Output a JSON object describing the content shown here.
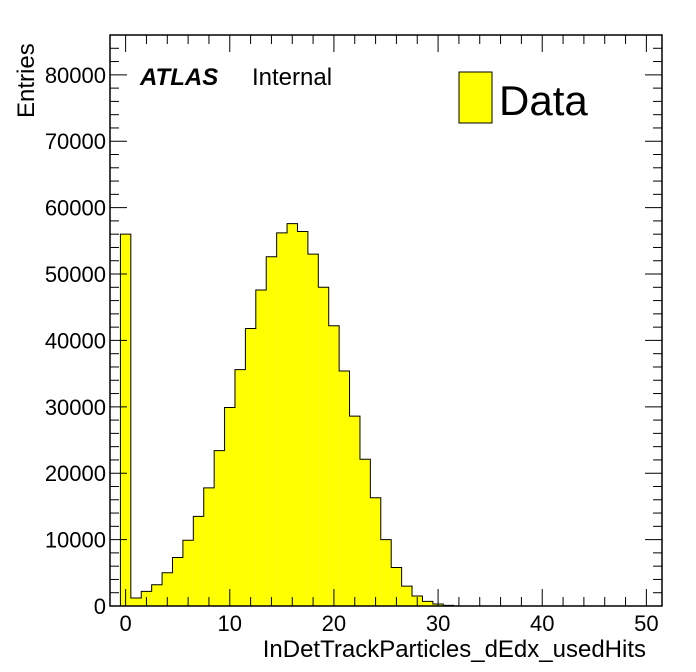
{
  "chart_data": {
    "type": "bar",
    "xlabel": "InDetTrackParticles_dEdx_usedHits",
    "ylabel": "Entries",
    "xlim": [
      -1.5,
      51.5
    ],
    "ylim": [
      0,
      86000
    ],
    "bin_width": 1,
    "x_bin_starts": [
      -0.5,
      0.5,
      1.5,
      2.5,
      3.5,
      4.5,
      5.5,
      6.5,
      7.5,
      8.5,
      9.5,
      10.5,
      11.5,
      12.5,
      13.5,
      14.5,
      15.5,
      16.5,
      17.5,
      18.5,
      19.5,
      20.5,
      21.5,
      22.5,
      23.5,
      24.5,
      25.5,
      26.5,
      27.5,
      28.5,
      29.5,
      30.5,
      31.5,
      32.5,
      33.5,
      34.5,
      35.5,
      36.5,
      37.5,
      38.5,
      39.5,
      40.5,
      41.5,
      42.5,
      43.5,
      44.5,
      45.5,
      46.5,
      47.5,
      48.5,
      49.5
    ],
    "values": [
      56000,
      1200,
      2200,
      3200,
      5000,
      7300,
      9900,
      13500,
      17800,
      23400,
      29900,
      35600,
      41800,
      47600,
      52600,
      56200,
      57600,
      56400,
      53000,
      48000,
      42200,
      35400,
      28600,
      22100,
      16300,
      10000,
      5800,
      3000,
      1500,
      700,
      300,
      100,
      0,
      0,
      0,
      0,
      0,
      0,
      0,
      0,
      0,
      0,
      0,
      0,
      0,
      0,
      0,
      0,
      0,
      0,
      0
    ],
    "series": [
      {
        "name": "Data",
        "color": "#ffff00"
      }
    ],
    "x_ticks": [
      "0",
      "10",
      "20",
      "30",
      "40",
      "50"
    ],
    "y_ticks": [
      "0",
      "10000",
      "20000",
      "30000",
      "40000",
      "50000",
      "60000",
      "70000",
      "80000"
    ],
    "grid": false,
    "legend": "top-right"
  },
  "atlas_label": {
    "experiment": "ATLAS",
    "status": "Internal"
  },
  "legend": {
    "label": "Data"
  }
}
